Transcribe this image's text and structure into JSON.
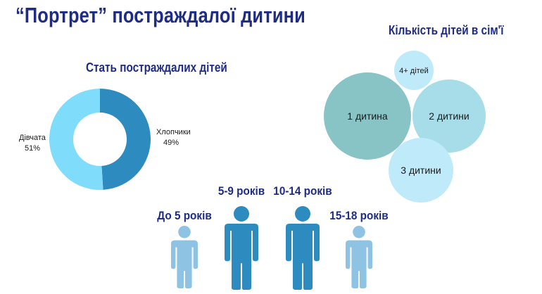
{
  "title": "“Портрет” постраждалої дитини",
  "gender_chart": {
    "heading": "Стать постраждалих дітей",
    "colors": {
      "boys": "#2e8bc0",
      "girls": "#7fdcfb"
    },
    "chart_data": {
      "type": "pie",
      "title": "Стать постраждалих дітей",
      "categories": [
        "Хлопчики",
        "Дівчата"
      ],
      "values": [
        49,
        51
      ],
      "value_labels": [
        "49%",
        "51%"
      ],
      "donut": true
    }
  },
  "family_chart": {
    "heading": "Кількість дітей в сім'ї",
    "bubbles": [
      {
        "label": "1 дитина",
        "color": "#88c4c6"
      },
      {
        "label": "2 дитини",
        "color": "#a6dde8"
      },
      {
        "label": "3 дитини",
        "color": "#bfeaf9"
      },
      {
        "label": "4+ дітей",
        "color": "#bfeaf9"
      }
    ]
  },
  "age_groups": [
    {
      "label": "До 5 років",
      "color": "#8fc3e4",
      "size": "small"
    },
    {
      "label": "5-9 років",
      "color": "#2e8bc0",
      "size": "large"
    },
    {
      "label": "10-14 років",
      "color": "#2e8bc0",
      "size": "large"
    },
    {
      "label": "15-18 років",
      "color": "#8fc3e4",
      "size": "small"
    }
  ]
}
